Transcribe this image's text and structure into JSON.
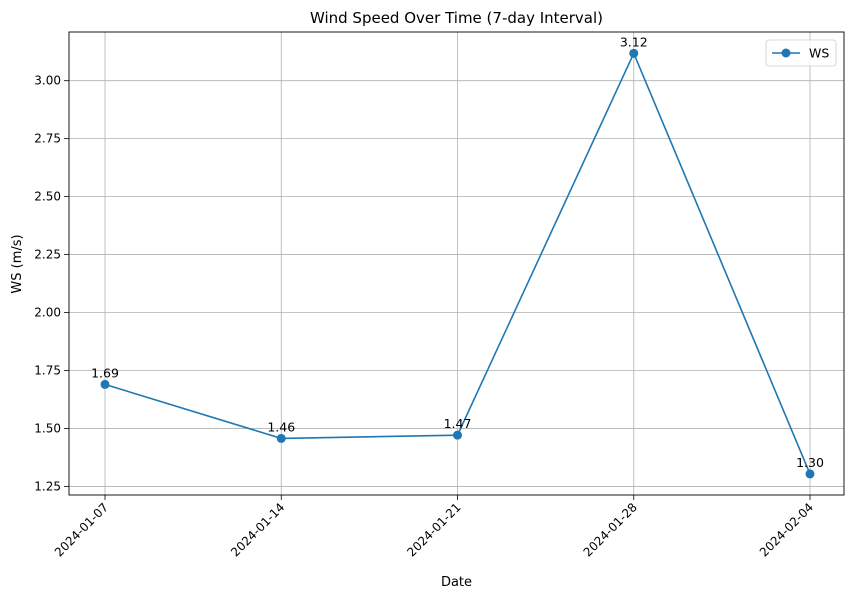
{
  "chart_data": {
    "type": "line",
    "title": "Wind Speed Over Time (7-day Interval)",
    "xlabel": "Date",
    "ylabel": "WS (m/s)",
    "categories": [
      "2024-01-07",
      "2024-01-14",
      "2024-01-21",
      "2024-01-28",
      "2024-02-04"
    ],
    "series": [
      {
        "name": "WS",
        "values": [
          1.69,
          1.457,
          1.471,
          3.118,
          1.304
        ],
        "labels": [
          "1.69",
          "1.46",
          "1.47",
          "3.12",
          "1.30"
        ],
        "color": "#1f77b4",
        "marker": "circle"
      }
    ],
    "yticks": [
      "1.25",
      "1.50",
      "1.75",
      "2.00",
      "2.25",
      "2.50",
      "2.75",
      "3.00"
    ],
    "ylim": [
      1.213,
      3.21
    ],
    "grid": true,
    "legend": "top-right",
    "xtick_rotation": -45
  }
}
